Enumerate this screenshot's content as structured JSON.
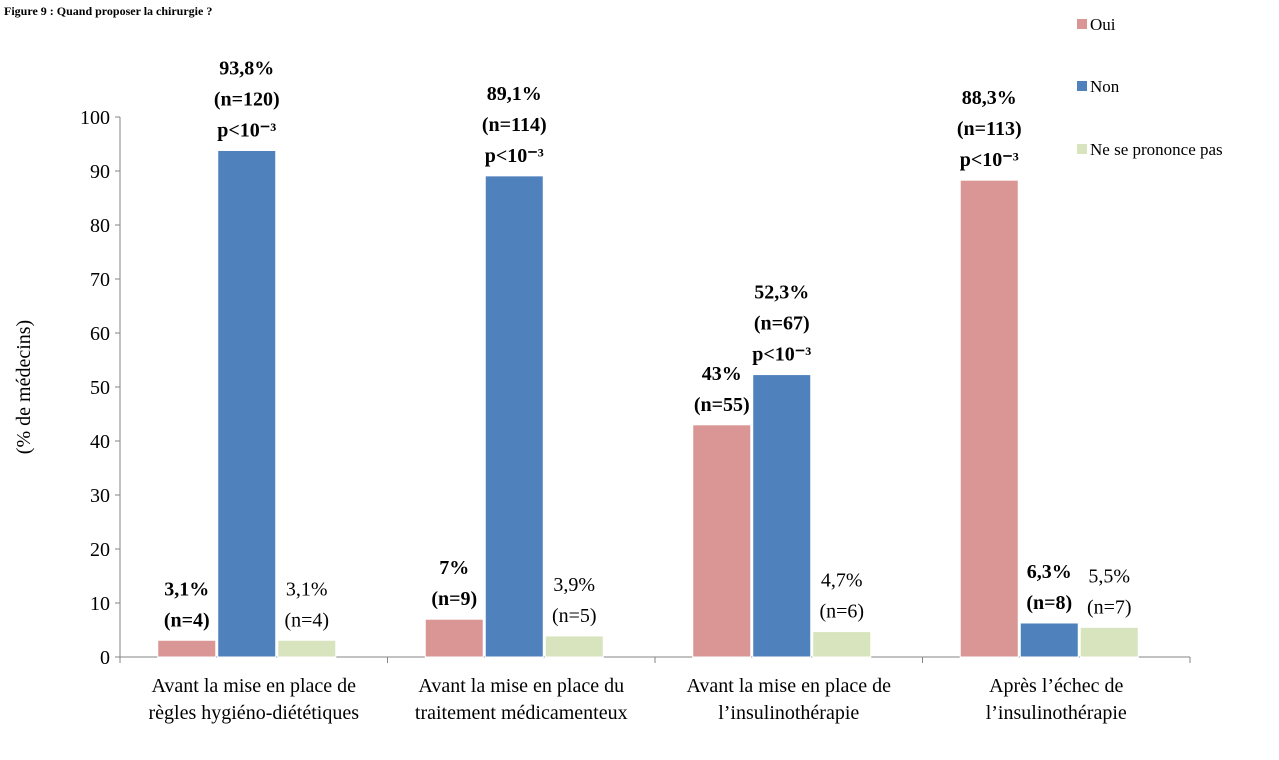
{
  "chart_data": {
    "type": "bar",
    "title": "Figure  9 : Quand proposer la chirurgie ?",
    "y_label": "(% de médecins)",
    "categories": [
      "Avant la mise en place de règles hygiéno-diététiques",
      "Avant la mise en place du traitement médicamenteux",
      "Avant la mise en place de l’insulinothérapie",
      "Après l’échec de l’insulinothérapie"
    ],
    "series": [
      {
        "name": "Oui",
        "color": "#d99694",
        "values": [
          3.1,
          7,
          43,
          88.3
        ],
        "value_labels": [
          "3,1%",
          "7%",
          "43%",
          "88,3%"
        ],
        "count_labels": [
          "(n=4)",
          "(n=9)",
          "(n=55)",
          "(n=113)"
        ],
        "p_labels": [
          null,
          null,
          null,
          "p<10⁻³"
        ]
      },
      {
        "name": "Non",
        "color": "#4f81bd",
        "values": [
          93.8,
          89.1,
          52.3,
          6.3
        ],
        "value_labels": [
          "93,8%",
          "89,1%",
          "52,3%",
          "6,3%"
        ],
        "count_labels": [
          "(n=120)",
          "(n=114)",
          "(n=67)",
          "(n=8)"
        ],
        "p_labels": [
          "p<10⁻³",
          "p<10⁻³",
          "p<10⁻³",
          null
        ]
      },
      {
        "name": "Ne se prononce pas",
        "color": "#d7e4bd",
        "values": [
          3.1,
          3.9,
          4.7,
          5.5
        ],
        "value_labels": [
          "3,1%",
          "3,9%",
          "4,7%",
          "5,5%"
        ],
        "count_labels": [
          "(n=4)",
          "(n=5)",
          "(n=6)",
          "(n=7)"
        ],
        "p_labels": [
          null,
          null,
          null,
          null
        ]
      }
    ],
    "ylim": [
      0,
      100
    ],
    "yticks": [
      0,
      10,
      20,
      30,
      40,
      50,
      60,
      70,
      80,
      90,
      100
    ],
    "grid": false,
    "legend": "top-right"
  }
}
